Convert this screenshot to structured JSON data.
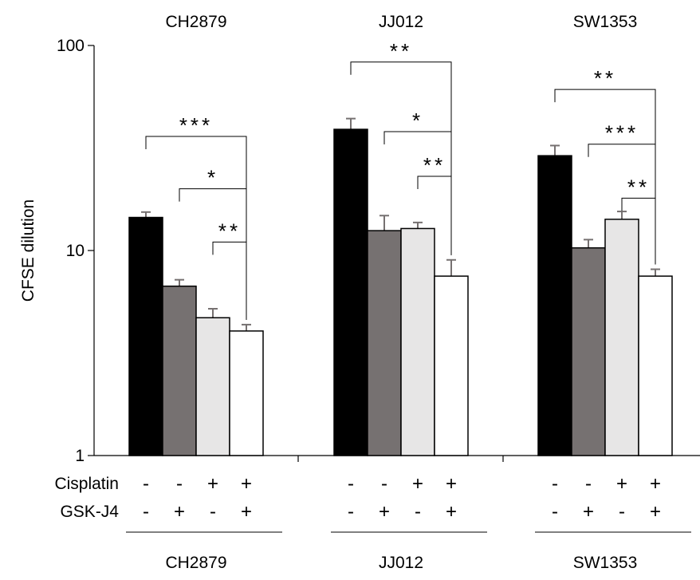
{
  "chart_data": {
    "type": "bar",
    "scale": "log",
    "ylabel": "CFSE dilution",
    "ylim": [
      1,
      100
    ],
    "yticks": [
      "1",
      "10",
      "100"
    ],
    "grid": false,
    "groups": [
      {
        "name": "CH2879",
        "bars": [
          {
            "cisplatin": "-",
            "gsk": "-",
            "value": 14.5,
            "err": 0.9,
            "color": "#000000"
          },
          {
            "cisplatin": "-",
            "gsk": "+",
            "value": 6.7,
            "err": 0.5,
            "color": "#767171"
          },
          {
            "cisplatin": "+",
            "gsk": "-",
            "value": 4.7,
            "err": 0.5,
            "color": "#e7e6e6"
          },
          {
            "cisplatin": "+",
            "gsk": "+",
            "value": 4.05,
            "err": 0.3,
            "color": "#ffffff"
          }
        ],
        "brackets": [
          {
            "from": 0,
            "to": 3,
            "y": 36,
            "label": "***"
          },
          {
            "from": 1,
            "to": 3,
            "y": 20,
            "label": "*"
          },
          {
            "from": 2,
            "to": 3,
            "y": 11,
            "label": "**"
          }
        ]
      },
      {
        "name": "JJ012",
        "bars": [
          {
            "cisplatin": "-",
            "gsk": "-",
            "value": 39,
            "err": 5,
            "color": "#000000"
          },
          {
            "cisplatin": "-",
            "gsk": "+",
            "value": 12.5,
            "err": 2.3,
            "color": "#767171"
          },
          {
            "cisplatin": "+",
            "gsk": "-",
            "value": 12.8,
            "err": 0.9,
            "color": "#e7e6e6"
          },
          {
            "cisplatin": "+",
            "gsk": "+",
            "value": 7.5,
            "err": 1.5,
            "color": "#ffffff"
          }
        ],
        "brackets": [
          {
            "from": 0,
            "to": 3,
            "y": 83,
            "label": "**"
          },
          {
            "from": 1,
            "to": 3,
            "y": 38,
            "label": "*"
          },
          {
            "from": 2,
            "to": 3,
            "y": 23,
            "label": "**"
          }
        ]
      },
      {
        "name": "SW1353",
        "bars": [
          {
            "cisplatin": "-",
            "gsk": "-",
            "value": 29,
            "err": 3.5,
            "color": "#000000"
          },
          {
            "cisplatin": "-",
            "gsk": "+",
            "value": 10.3,
            "err": 1,
            "color": "#767171"
          },
          {
            "cisplatin": "+",
            "gsk": "-",
            "value": 14.2,
            "err": 1.3,
            "color": "#e7e6e6"
          },
          {
            "cisplatin": "+",
            "gsk": "+",
            "value": 7.5,
            "err": 0.6,
            "color": "#ffffff"
          }
        ],
        "brackets": [
          {
            "from": 0,
            "to": 3,
            "y": 61,
            "label": "**"
          },
          {
            "from": 1,
            "to": 3,
            "y": 33,
            "label": "***"
          },
          {
            "from": 2,
            "to": 3,
            "y": 18,
            "label": "**"
          }
        ]
      }
    ],
    "row_labels": [
      "Cisplatin",
      "GSK-J4"
    ]
  }
}
